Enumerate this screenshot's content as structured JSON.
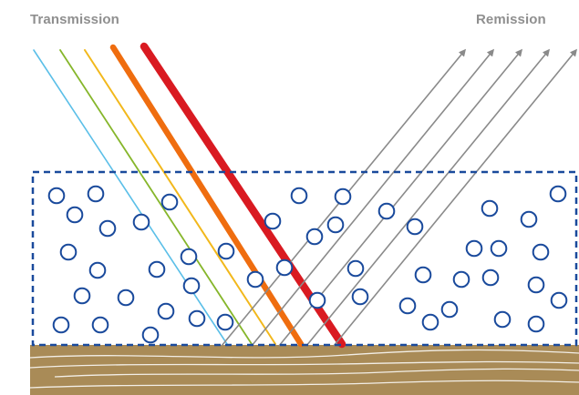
{
  "labels": {
    "transmission": "Transmission",
    "remission": "Remission"
  },
  "colors": {
    "label": "#8f8f8f",
    "particle": "#1a4a9c",
    "border": "#1a4a9c",
    "substrate": "#a98b57",
    "substrate_lines": "#ffffff",
    "remission_arrows": "#8a8a8a",
    "rays": [
      "#5bbfe8",
      "#86b62b",
      "#f2b81c",
      "#ef6d0f",
      "#d91a21"
    ]
  },
  "diagram": {
    "incoming_ray_count": 5,
    "remission_arrow_count": 5,
    "particle_count": 42
  }
}
